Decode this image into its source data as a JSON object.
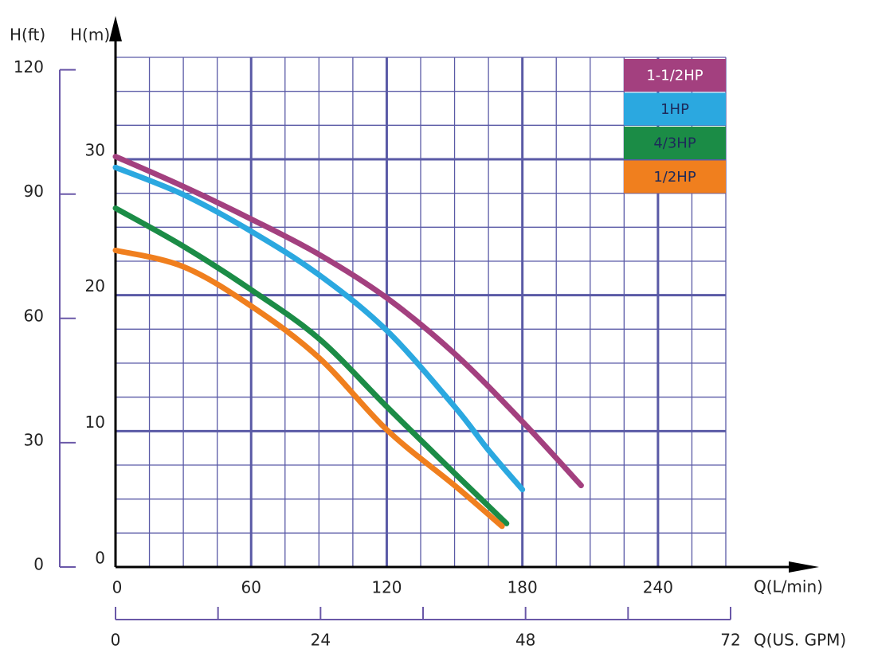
{
  "chart_data": {
    "type": "line",
    "y_label": "H(m)",
    "y2_label": "H(ft)",
    "x_label": "Q(L/min)",
    "x2_label": "Q(US. GPM)",
    "xlim": [
      0,
      270
    ],
    "xticks": [
      0,
      60,
      120,
      180,
      240
    ],
    "xminorticks": [
      15,
      30,
      45,
      75,
      90,
      105,
      135,
      150,
      165,
      195,
      210,
      225,
      255,
      270
    ],
    "ylim": [
      0,
      37.5
    ],
    "yticks": [
      0,
      10,
      20,
      30
    ],
    "yminorticks": [
      2.5,
      5,
      7.5,
      12.5,
      15,
      17.5,
      22.5,
      25,
      27.5,
      32.5,
      35,
      37.5
    ],
    "y2lim": [
      0,
      123
    ],
    "y2ticks": [
      0,
      30,
      60,
      90,
      120
    ],
    "x2lim": [
      0,
      72
    ],
    "x2ticks": [
      0,
      24,
      48,
      72
    ],
    "x2minorticks": [
      12,
      36,
      60
    ],
    "grid": true,
    "grid_color": "#5a5aa6",
    "legend": "upper right",
    "series": [
      {
        "name": "1-1/2HP",
        "color": "#a3407f",
        "x": [
          0,
          30,
          60,
          90,
          120,
          150,
          180,
          206
        ],
        "values": [
          30.2,
          28.0,
          25.6,
          23.0,
          19.8,
          15.7,
          10.7,
          6.0
        ]
      },
      {
        "name": "1HP",
        "color": "#2ba8e0",
        "x": [
          0,
          30,
          60,
          90,
          120,
          150,
          165,
          180
        ],
        "values": [
          29.4,
          27.4,
          24.7,
          21.5,
          17.4,
          11.8,
          8.6,
          5.7
        ]
      },
      {
        "name": "4/3HP",
        "color": "#1b8c46",
        "x": [
          0,
          30,
          60,
          90,
          120,
          150,
          173
        ],
        "values": [
          26.4,
          23.6,
          20.4,
          16.8,
          11.8,
          6.9,
          3.2
        ]
      },
      {
        "name": "1/2HP",
        "color": "#f07f1e",
        "x": [
          0,
          30,
          60,
          90,
          120,
          150,
          171
        ],
        "values": [
          23.3,
          22.1,
          19.2,
          15.4,
          10.1,
          6.0,
          3.0
        ]
      }
    ]
  }
}
